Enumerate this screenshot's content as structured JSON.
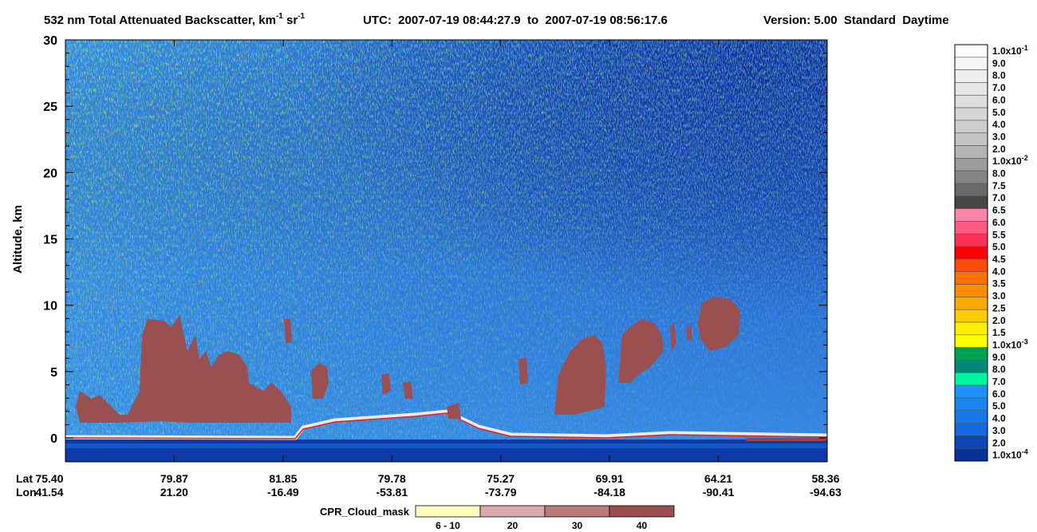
{
  "chart_data": {
    "type": "curtain",
    "title_parts": [
      {
        "text": "532 nm Total Attenuated Backscatter, km"
      },
      {
        "sup": "-1"
      },
      {
        "text": " sr"
      },
      {
        "sup": "-1"
      }
    ],
    "utc": "UTC:  2007-07-19 08:44:27.9  to  2007-07-19 08:56:17.6",
    "version": "Version: 5.00  Standard  Daytime",
    "ylabel": "Altitude, km",
    "ylim": [
      -1.8,
      30
    ],
    "yticks": [
      0,
      5,
      10,
      15,
      20,
      25,
      30
    ],
    "x_row_labels": [
      "Lat",
      "Lon"
    ],
    "x_ticks": [
      {
        "lat": "75.40",
        "lon": "41.54"
      },
      {
        "lat": "79.87",
        "lon": "21.20"
      },
      {
        "lat": "81.85",
        "lon": "-16.49"
      },
      {
        "lat": "79.78",
        "lon": "-53.81"
      },
      {
        "lat": "75.27",
        "lon": "-73.79"
      },
      {
        "lat": "69.91",
        "lon": "-84.18"
      },
      {
        "lat": "64.21",
        "lon": "-90.41"
      },
      {
        "lat": "58.36",
        "lon": "-94.63"
      }
    ],
    "colorbar": {
      "labels": [
        {
          "text": "1.0x10",
          "sup": "-1"
        },
        {
          "text": "9.0"
        },
        {
          "text": "8.0"
        },
        {
          "text": "7.0"
        },
        {
          "text": "6.0"
        },
        {
          "text": "5.0"
        },
        {
          "text": "4.0"
        },
        {
          "text": "3.0"
        },
        {
          "text": "2.0"
        },
        {
          "text": "1.0x10",
          "sup": "-2"
        },
        {
          "text": "8.0"
        },
        {
          "text": "7.5"
        },
        {
          "text": "7.0"
        },
        {
          "text": "6.5"
        },
        {
          "text": "6.0"
        },
        {
          "text": "5.5"
        },
        {
          "text": "5.0"
        },
        {
          "text": "4.5"
        },
        {
          "text": "4.0"
        },
        {
          "text": "3.5"
        },
        {
          "text": "3.0"
        },
        {
          "text": "2.5"
        },
        {
          "text": "2.0"
        },
        {
          "text": "1.5"
        },
        {
          "text": "1.0x10",
          "sup": "-3"
        },
        {
          "text": "9.0"
        },
        {
          "text": "8.0"
        },
        {
          "text": "7.0"
        },
        {
          "text": "6.0"
        },
        {
          "text": "5.0"
        },
        {
          "text": "4.0"
        },
        {
          "text": "3.0"
        },
        {
          "text": "2.0"
        },
        {
          "text": "1.0x10",
          "sup": "-4"
        }
      ],
      "colors": [
        "#ffffff",
        "#f6f6f6",
        "#eeeeee",
        "#e6e6e6",
        "#dedede",
        "#d6d6d6",
        "#cdcdcd",
        "#c4c4c4",
        "#b4b4b4",
        "#9c9c9c",
        "#858585",
        "#6a6a6a",
        "#474747",
        "#ff82a8",
        "#ff5a80",
        "#ff3058",
        "#ff0000",
        "#ff4a00",
        "#ff7000",
        "#ff8c00",
        "#ffaa00",
        "#ffcc00",
        "#ffee00",
        "#ffff00",
        "#00a050",
        "#00887a",
        "#00f5a0",
        "#1e90ff",
        "#1a84f5",
        "#1778ec",
        "#1468e0",
        "#0c46b4",
        "#06309a"
      ]
    },
    "cpr_legend": {
      "title": "CPR_Cloud_mask",
      "entries": [
        {
          "label": "6 - 10",
          "color": "#ffffc4"
        },
        {
          "label": "20",
          "color": "#d8aaaa"
        },
        {
          "label": "30",
          "color": "#b87a7a"
        },
        {
          "label": "40",
          "color": "#9a4f4f"
        }
      ]
    }
  }
}
